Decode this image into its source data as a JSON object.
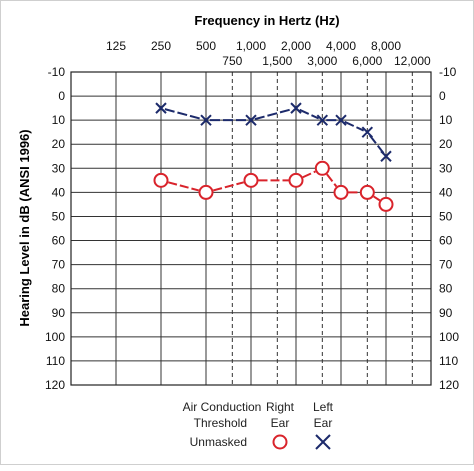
{
  "chart_data": {
    "type": "line",
    "title": "Frequency in Hertz (Hz)",
    "ylabel": "Hearing Level in dB (ANSI 1996)",
    "x_major_ticks": [
      125,
      250,
      500,
      1000,
      2000,
      4000,
      8000
    ],
    "x_major_labels": [
      "125",
      "250",
      "500",
      "1,000",
      "2,000",
      "4,000",
      "8,000"
    ],
    "x_minor_ticks": [
      750,
      1500,
      3000,
      6000,
      12000
    ],
    "x_minor_labels": [
      "750",
      "1,500",
      "3,000",
      "6,000",
      "12,000"
    ],
    "ylim": [
      -10,
      120
    ],
    "y_ticks": [
      -10,
      0,
      10,
      20,
      30,
      40,
      50,
      60,
      70,
      80,
      90,
      100,
      110,
      120
    ],
    "y_reversed": true,
    "grid": true,
    "series": [
      {
        "name": "Right Ear",
        "marker": "circle",
        "color": "#d9232b",
        "x": [
          250,
          500,
          1000,
          2000,
          3000,
          4000,
          6000,
          8000
        ],
        "y": [
          35,
          40,
          35,
          35,
          30,
          40,
          40,
          45
        ]
      },
      {
        "name": "Left Ear",
        "marker": "x",
        "color": "#1c2a6b",
        "x": [
          250,
          500,
          1000,
          2000,
          3000,
          4000,
          6000,
          8000
        ],
        "y": [
          5,
          10,
          10,
          5,
          10,
          10,
          15,
          25
        ]
      }
    ]
  },
  "legend": {
    "col1_line1": "Air Conduction",
    "col1_line2": "Threshold",
    "col2_line1": "Right",
    "col2_line2": "Ear",
    "col3_line1": "Left",
    "col3_line2": "Ear",
    "row_label": "Unmasked"
  }
}
